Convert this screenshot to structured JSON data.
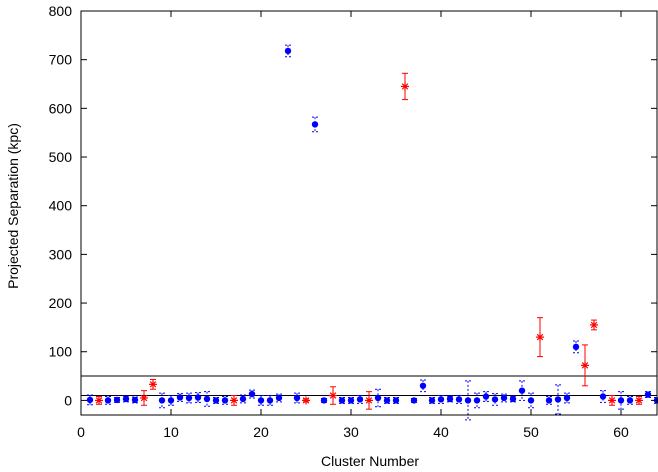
{
  "chart_data": {
    "type": "scatter",
    "title": "",
    "xlabel": "Cluster Number",
    "ylabel": "Projected Separation (kpc)",
    "xlim": [
      0,
      64
    ],
    "ylim": [
      -30,
      800
    ],
    "xticks": [
      0,
      10,
      20,
      30,
      40,
      50,
      60
    ],
    "yticks": [
      0,
      100,
      200,
      300,
      400,
      500,
      600,
      700,
      800
    ],
    "reference_lines_y": [
      10,
      50
    ],
    "grid": false,
    "legend": "none",
    "colors": {
      "series_blue": "#0000ff",
      "series_red": "#ff0000",
      "axis": "#000000"
    },
    "series": [
      {
        "marker": "filled-circle",
        "color": "#0000ff",
        "points": [
          {
            "x": 1,
            "y": 1,
            "err": 10
          },
          {
            "x": 3,
            "y": 0,
            "err": 8
          },
          {
            "x": 4,
            "y": 1,
            "err": 5
          },
          {
            "x": 5,
            "y": 3,
            "err": 6
          },
          {
            "x": 6,
            "y": 1,
            "err": 6
          },
          {
            "x": 9,
            "y": 0,
            "err": 15
          },
          {
            "x": 10,
            "y": 0,
            "err": 10
          },
          {
            "x": 11,
            "y": 6,
            "err": 8
          },
          {
            "x": 12,
            "y": 5,
            "err": 10
          },
          {
            "x": 13,
            "y": 6,
            "err": 10
          },
          {
            "x": 14,
            "y": 3,
            "err": 15
          },
          {
            "x": 15,
            "y": 0,
            "err": 6
          },
          {
            "x": 16,
            "y": 0,
            "err": 8
          },
          {
            "x": 18,
            "y": 3,
            "err": 8
          },
          {
            "x": 19,
            "y": 13,
            "err": 8
          },
          {
            "x": 20,
            "y": 0,
            "err": 10
          },
          {
            "x": 21,
            "y": 0,
            "err": 10
          },
          {
            "x": 22,
            "y": 5,
            "err": 8
          },
          {
            "x": 23,
            "y": 718,
            "err": 12
          },
          {
            "x": 24,
            "y": 5,
            "err": 10
          },
          {
            "x": 26,
            "y": 567,
            "err": 15
          },
          {
            "x": 27,
            "y": 0,
            "err": 4
          },
          {
            "x": 29,
            "y": 0,
            "err": 6
          },
          {
            "x": 30,
            "y": 0,
            "err": 6
          },
          {
            "x": 31,
            "y": 2,
            "err": 8
          },
          {
            "x": 33,
            "y": 5,
            "err": 18
          },
          {
            "x": 34,
            "y": 0,
            "err": 6
          },
          {
            "x": 35,
            "y": 0,
            "err": 6
          },
          {
            "x": 37,
            "y": 0,
            "err": 4
          },
          {
            "x": 38,
            "y": 30,
            "err": 12
          },
          {
            "x": 39,
            "y": 0,
            "err": 6
          },
          {
            "x": 40,
            "y": 2,
            "err": 8
          },
          {
            "x": 41,
            "y": 3,
            "err": 6
          },
          {
            "x": 42,
            "y": 2,
            "err": 8
          },
          {
            "x": 43,
            "y": 0,
            "err": 40
          },
          {
            "x": 44,
            "y": 0,
            "err": 15
          },
          {
            "x": 45,
            "y": 8,
            "err": 10
          },
          {
            "x": 46,
            "y": 2,
            "err": 12
          },
          {
            "x": 47,
            "y": 5,
            "err": 8
          },
          {
            "x": 48,
            "y": 3,
            "err": 6
          },
          {
            "x": 49,
            "y": 20,
            "err": 20
          },
          {
            "x": 50,
            "y": 0,
            "err": 15
          },
          {
            "x": 52,
            "y": 0,
            "err": 8
          },
          {
            "x": 53,
            "y": 2,
            "err": 30
          },
          {
            "x": 54,
            "y": 5,
            "err": 10
          },
          {
            "x": 55,
            "y": 110,
            "err": 12
          },
          {
            "x": 58,
            "y": 8,
            "err": 12
          },
          {
            "x": 60,
            "y": 0,
            "err": 18
          },
          {
            "x": 61,
            "y": 0,
            "err": 8
          },
          {
            "x": 63,
            "y": 12,
            "err": 6
          },
          {
            "x": 64,
            "y": 0,
            "err": 6
          }
        ]
      },
      {
        "marker": "asterisk",
        "color": "#ff0000",
        "points": [
          {
            "x": 2,
            "y": 0,
            "err": 8
          },
          {
            "x": 7,
            "y": 5,
            "err": 15
          },
          {
            "x": 8,
            "y": 33,
            "err": 10
          },
          {
            "x": 17,
            "y": 0,
            "err": 10
          },
          {
            "x": 25,
            "y": 0,
            "err": 3
          },
          {
            "x": 28,
            "y": 10,
            "err": 18
          },
          {
            "x": 32,
            "y": 0,
            "err": 18
          },
          {
            "x": 36,
            "y": 645,
            "err": 27
          },
          {
            "x": 51,
            "y": 130,
            "err": 40
          },
          {
            "x": 56,
            "y": 72,
            "err": 42
          },
          {
            "x": 57,
            "y": 155,
            "err": 10
          },
          {
            "x": 59,
            "y": 0,
            "err": 10
          },
          {
            "x": 62,
            "y": 0,
            "err": 8
          }
        ]
      }
    ]
  }
}
